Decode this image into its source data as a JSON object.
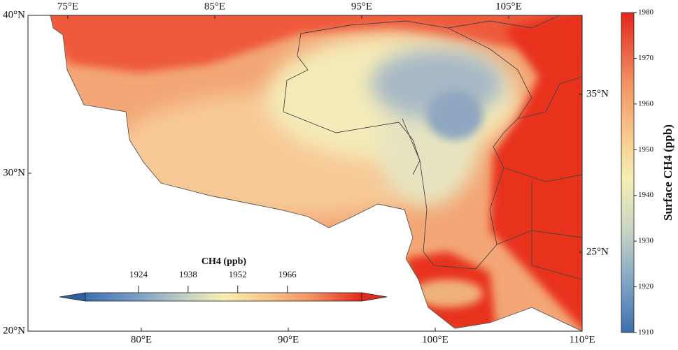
{
  "map": {
    "xticks_top": [
      {
        "value": 75,
        "label": "75°E"
      },
      {
        "value": 85,
        "label": "85°E"
      },
      {
        "value": 95,
        "label": "95°E"
      },
      {
        "value": 105,
        "label": "105°E"
      }
    ],
    "xticks_bottom": [
      {
        "value": 80,
        "label": "80°E"
      },
      {
        "value": 90,
        "label": "90°E"
      },
      {
        "value": 100,
        "label": "100°E"
      },
      {
        "value": 110,
        "label": "110°E"
      }
    ],
    "yticks_left": [
      {
        "value": 40,
        "label": "40°N"
      },
      {
        "value": 30,
        "label": "30°N"
      },
      {
        "value": 20,
        "label": "20°N"
      }
    ],
    "yticks_right": [
      {
        "value": 35,
        "label": "35°N"
      },
      {
        "value": 25,
        "label": "25°N"
      }
    ]
  },
  "colorbar": {
    "label": "Surface CH4 (ppb)",
    "ylim": [
      1910,
      1980
    ],
    "yticks": [
      1910,
      1920,
      1930,
      1940,
      1950,
      1960,
      1970,
      1980
    ]
  },
  "inset_colorbar": {
    "title": "CH4 (ppb)",
    "xlim": [
      1909,
      1987
    ],
    "xticks": [
      1924,
      1938,
      1952,
      1966
    ]
  }
}
